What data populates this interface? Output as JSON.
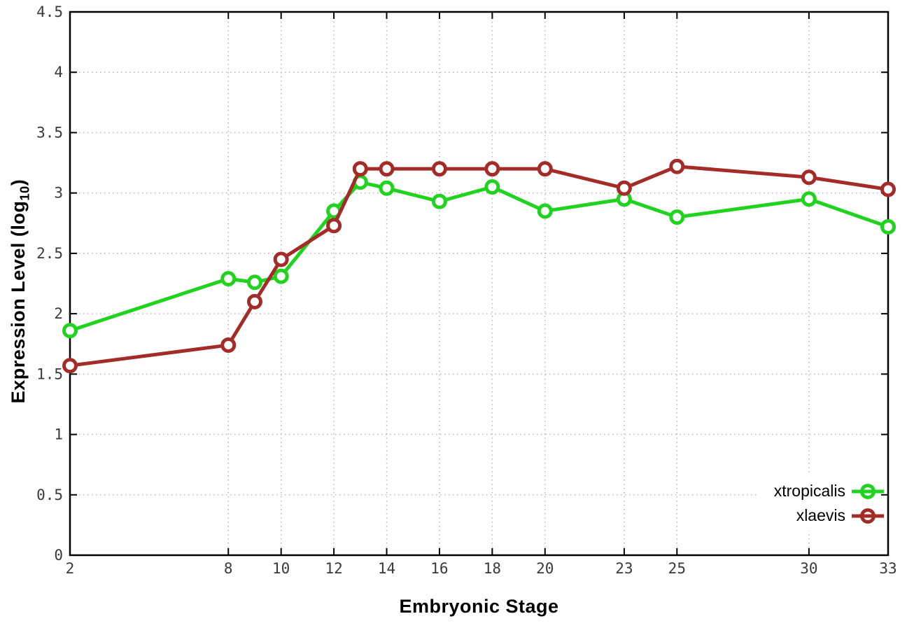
{
  "chart_data": {
    "type": "line",
    "xlabel": "Embryonic Stage",
    "ylabel": "Expression Level (log10)",
    "ylabel_parts": {
      "prefix": "Expression Level (log",
      "sub": "10",
      "suffix": ")"
    },
    "x": [
      2,
      8,
      9,
      10,
      12,
      13,
      14,
      16,
      18,
      20,
      23,
      25,
      30,
      33
    ],
    "series": [
      {
        "name": "xtropicalis",
        "color": "#1fd31f",
        "values": [
          1.86,
          2.29,
          2.26,
          2.31,
          2.85,
          3.09,
          3.04,
          2.93,
          3.05,
          2.85,
          2.95,
          2.8,
          2.95,
          2.72
        ]
      },
      {
        "name": "xlaevis",
        "color": "#a42c28",
        "values": [
          1.57,
          1.74,
          2.1,
          2.45,
          2.73,
          3.2,
          3.2,
          3.2,
          3.2,
          3.2,
          3.04,
          3.22,
          3.13,
          3.03
        ]
      }
    ],
    "xlim": [
      2,
      33
    ],
    "ylim": [
      0,
      4.5
    ],
    "xticks": [
      2,
      8,
      10,
      12,
      14,
      16,
      18,
      20,
      23,
      25,
      30,
      33
    ],
    "yticks": [
      0,
      0.5,
      1,
      1.5,
      2,
      2.5,
      3,
      3.5,
      4,
      4.5
    ],
    "grid": true,
    "marker": "open-circle",
    "legend_position": "bottom-right",
    "colors": {
      "background": "#ffffff",
      "grid": "#b5b5b5",
      "axis": "#000000",
      "tick_label": "#3a3a3a"
    }
  }
}
